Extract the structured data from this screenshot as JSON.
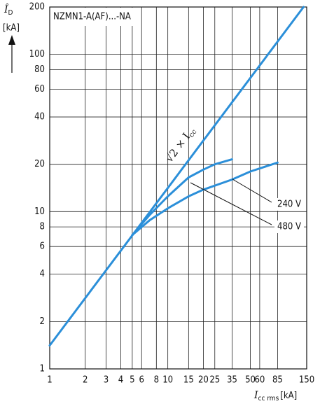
{
  "chart_data": {
    "type": "line",
    "title": "NZMN1-A(AF)...-NA",
    "y_label": {
      "symbol": "Î",
      "sub": "D",
      "unit": "[kA]"
    },
    "x_label": {
      "symbol": "I",
      "sub": "cc rms",
      "unit": "[kA]"
    },
    "log_x": true,
    "log_y": true,
    "grid": true,
    "xlim": [
      1,
      150
    ],
    "ylim": [
      1,
      200
    ],
    "xticks": [
      1,
      2,
      3,
      4,
      5,
      6,
      8,
      10,
      15,
      20,
      25,
      35,
      50,
      60,
      85,
      150
    ],
    "yticks": [
      1,
      2,
      4,
      6,
      8,
      10,
      20,
      40,
      60,
      80,
      100,
      200
    ],
    "series": [
      {
        "name": {
          "text": "√2 × I",
          "sub": "cc"
        },
        "color": "#2b8fd9",
        "x": [
          1,
          141
        ],
        "values": [
          1.41,
          200
        ]
      },
      {
        "name": "480 V",
        "color": "#2b8fd9",
        "x": [
          5,
          7,
          10,
          15,
          20,
          25,
          35
        ],
        "values": [
          7.1,
          9.5,
          12.5,
          16.5,
          18.5,
          20,
          21.5
        ]
      },
      {
        "name": "240 V",
        "color": "#2b8fd9",
        "x": [
          5,
          7,
          10,
          15,
          20,
          35,
          50,
          85
        ],
        "values": [
          7.1,
          8.8,
          10.5,
          12.5,
          13.8,
          16,
          18,
          20.5
        ]
      }
    ]
  }
}
